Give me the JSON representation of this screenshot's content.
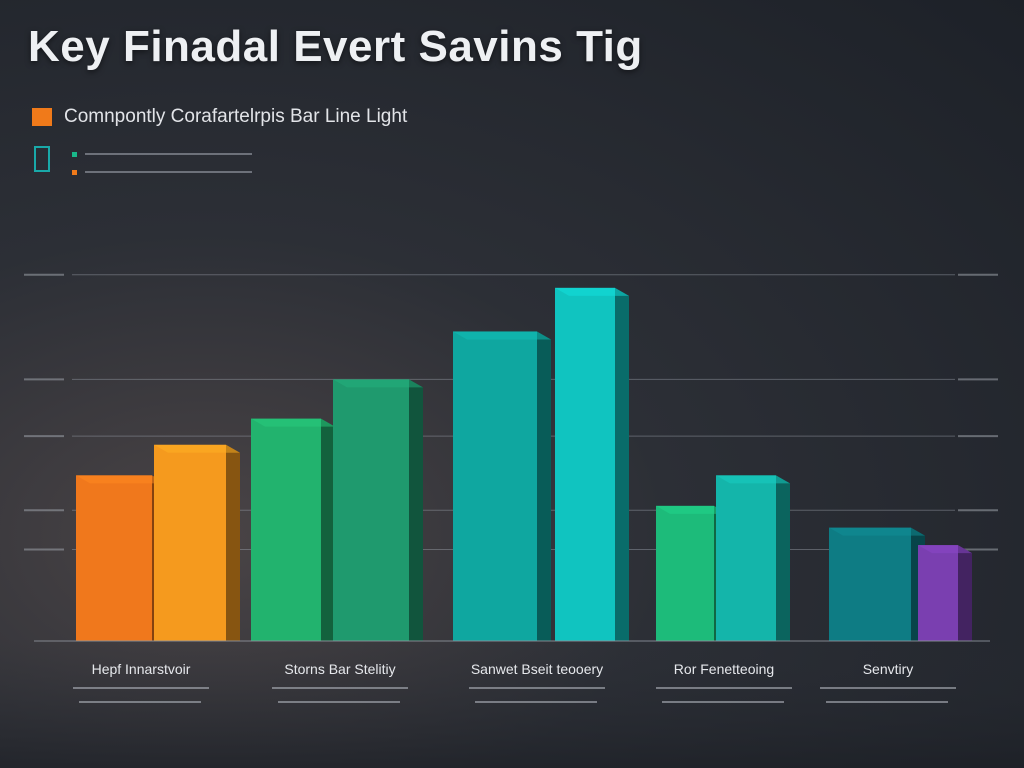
{
  "title": "Key Finadal Evert Savins Tig",
  "legend": {
    "main_label": "Comnpontly Corafartelrpis Bar Line Light",
    "main_color": "#f07a1a",
    "outline_color": "#19a9a9",
    "mini_colors": [
      "#19b88a",
      "#f07a1a"
    ]
  },
  "chart_data": {
    "type": "bar",
    "ylim": [
      0,
      100
    ],
    "grid": true,
    "gridlines": [
      21,
      30,
      47,
      60,
      84
    ],
    "groups": [
      {
        "label": "Hepf Innarstvoir",
        "values": [
          38,
          45
        ],
        "colors": [
          "#f0781c",
          "#f59a1e"
        ]
      },
      {
        "label": "Storns Bar Stelitiy",
        "values": [
          51,
          60
        ],
        "colors": [
          "#22b36e",
          "#1f9a6e"
        ]
      },
      {
        "label": "Sanwet Bseit teooery",
        "values": [
          71,
          81
        ],
        "colors": [
          "#0fa7a0",
          "#10c4c0"
        ]
      },
      {
        "label": "Ror Fenetteoing",
        "values": [
          31,
          38
        ],
        "colors": [
          "#1dbb7a",
          "#14b5aa"
        ]
      },
      {
        "label": "Senvtiry",
        "values": [
          26,
          22
        ],
        "colors": [
          "#0e7c84",
          "#7a3fb0"
        ]
      }
    ]
  }
}
